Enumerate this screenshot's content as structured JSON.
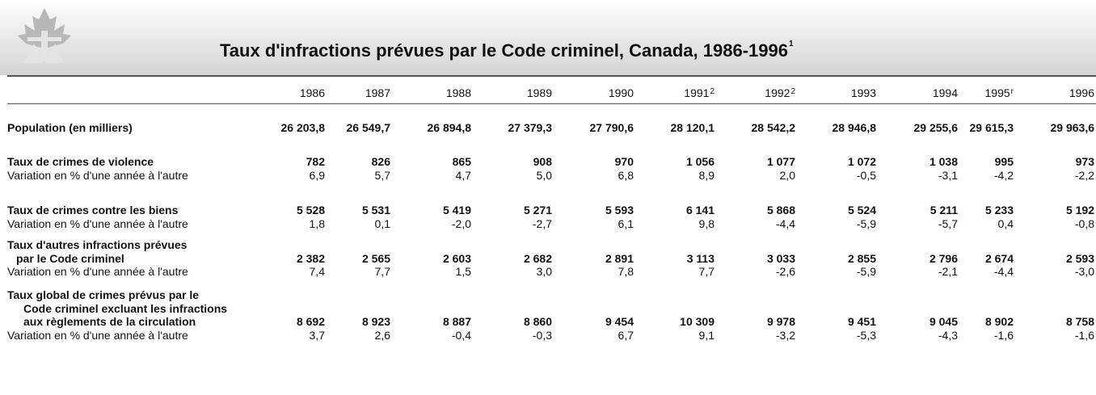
{
  "header": {
    "title": "Taux d'infractions prévues par le Code criminel, Canada, 1986-1996",
    "title_note": "1"
  },
  "table": {
    "columns": [
      {
        "year": "1986"
      },
      {
        "year": "1987"
      },
      {
        "year": "1988"
      },
      {
        "year": "1989"
      },
      {
        "year": "1990"
      },
      {
        "year": "1991",
        "note": "2"
      },
      {
        "year": "1992",
        "note": "2"
      },
      {
        "year": "1993"
      },
      {
        "year": "1994"
      },
      {
        "year": "1995",
        "note": "r"
      },
      {
        "year": "1996"
      }
    ],
    "rows": [
      {
        "label_lines": [
          "Population (en milliers)"
        ],
        "values": [
          "26 203,8",
          "26 549,7",
          "26 894,8",
          "27 379,3",
          "27 790,6",
          "28 120,1",
          "28 542,2",
          "28 946,8",
          "29 255,6",
          "29 615,3",
          "29 963,6"
        ]
      },
      {
        "label_lines": [
          "Taux de crimes de violence"
        ],
        "values": [
          "782",
          "826",
          "865",
          "908",
          "970",
          "1 056",
          "1 077",
          "1 072",
          "1 038",
          "995",
          "973"
        ],
        "variation": {
          "label": "Variation en % d'une année à l'autre",
          "values": [
            "6,9",
            "5,7",
            "4,7",
            "5,0",
            "6,8",
            "8,9",
            "2,0",
            "-0,5",
            "-3,1",
            "-4,2",
            "-2,2"
          ]
        }
      },
      {
        "label_lines": [
          "Taux de crimes contre les biens"
        ],
        "values": [
          "5 528",
          "5 531",
          "5 419",
          "5 271",
          "5 593",
          "6 141",
          "5 868",
          "5 524",
          "5 211",
          "5 233",
          "5 192"
        ],
        "variation": {
          "label": "Variation en % d'une année à l'autre",
          "values": [
            "1,8",
            "0,1",
            "-2,0",
            "-2,7",
            "6,1",
            "9,8",
            "-4,4",
            "-5,9",
            "-5,7",
            "0,4",
            "-0,8"
          ]
        }
      },
      {
        "label_lines": [
          "Taux d'autres infractions prévues",
          "par le Code criminel"
        ],
        "values": [
          "2 382",
          "2 565",
          "2 603",
          "2 682",
          "2 891",
          "3 113",
          "3 033",
          "2 855",
          "2 796",
          "2 674",
          "2 593"
        ],
        "variation": {
          "label": "Variation en % d'une année à l'autre",
          "values": [
            "7,4",
            "7,7",
            "1,5",
            "3,0",
            "7,8",
            "7,7",
            "-2,6",
            "-5,9",
            "-2,1",
            "-4,4",
            "-3,0"
          ]
        }
      },
      {
        "label_lines": [
          "Taux global de crimes prévus par le",
          "Code criminel excluant les infractions",
          "aux règlements de la circulation"
        ],
        "values": [
          "8 692",
          "8 923",
          "8 887",
          "8 860",
          "9 454",
          "10 309",
          "9 978",
          "9 451",
          "9 045",
          "8 902",
          "8 758"
        ],
        "variation": {
          "label": "Variation en % d'une année à l'autre",
          "values": [
            "3,7",
            "2,6",
            "-0,4",
            "-0,3",
            "6,7",
            "9,1",
            "-3,2",
            "-5,3",
            "-4,3",
            "-1,6",
            "-1,6"
          ]
        }
      }
    ]
  }
}
